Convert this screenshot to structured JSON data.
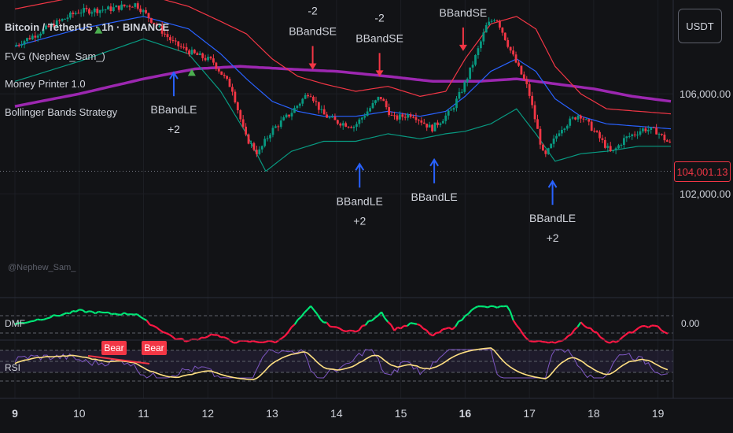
{
  "legend": {
    "symbol": "Bitcoin / TetherUS · 1h · BINANCE",
    "indicators": [
      "FVG (Nephew_Sam_)",
      "Money Printer 1.0",
      "Bollinger Bands Strategy"
    ]
  },
  "watermark": "@Nephew_Sam_",
  "currency_button": "USDT",
  "last_price": "104,001.13",
  "sub_panes": {
    "dmf_label": "DMF",
    "dmf_value": "0.00",
    "rsi_label": "RSI"
  },
  "colors": {
    "background": "#121316",
    "candle_up": "#089981",
    "candle_down": "#f23645",
    "bb_upper": "#f23645",
    "bb_basis": "#2962ff",
    "bb_lower": "#089981",
    "ma_long": "#9c27b0",
    "signal_long": "#2962ff",
    "signal_short": "#f23645",
    "rsi_signal": "#ffe082",
    "rsi_line": "#7e57c2",
    "dmf_up": "#00e676",
    "dmf_down": "#ff1744"
  },
  "chart_data": {
    "type": "candlestick",
    "x_ticks": [
      "9",
      "10",
      "11",
      "12",
      "13",
      "14",
      "15",
      "16",
      "17",
      "18",
      "19"
    ],
    "y_ticks": [
      "106,000.00",
      "102,000.00"
    ],
    "y_tick_values": [
      106000,
      102000
    ],
    "ylim": [
      100300,
      109600
    ],
    "last_price": 104001.13,
    "reference_line": 102900,
    "close_path": [
      {
        "x": 9.0,
        "y": 107900
      },
      {
        "x": 9.5,
        "y": 108600
      },
      {
        "x": 10.0,
        "y": 109300
      },
      {
        "x": 10.5,
        "y": 109400
      },
      {
        "x": 10.9,
        "y": 109600
      },
      {
        "x": 11.2,
        "y": 108800
      },
      {
        "x": 11.5,
        "y": 108000
      },
      {
        "x": 11.8,
        "y": 107600
      },
      {
        "x": 12.1,
        "y": 107300
      },
      {
        "x": 12.4,
        "y": 106200
      },
      {
        "x": 12.6,
        "y": 104300
      },
      {
        "x": 12.8,
        "y": 103600
      },
      {
        "x": 13.0,
        "y": 104500
      },
      {
        "x": 13.3,
        "y": 105200
      },
      {
        "x": 13.6,
        "y": 106100
      },
      {
        "x": 13.8,
        "y": 105200
      },
      {
        "x": 14.0,
        "y": 104900
      },
      {
        "x": 14.3,
        "y": 104700
      },
      {
        "x": 14.5,
        "y": 105300
      },
      {
        "x": 14.7,
        "y": 105900
      },
      {
        "x": 14.9,
        "y": 105000
      },
      {
        "x": 15.2,
        "y": 105200
      },
      {
        "x": 15.5,
        "y": 104600
      },
      {
        "x": 15.8,
        "y": 105300
      },
      {
        "x": 16.0,
        "y": 106300
      },
      {
        "x": 16.2,
        "y": 107600
      },
      {
        "x": 16.35,
        "y": 108700
      },
      {
        "x": 16.5,
        "y": 109100
      },
      {
        "x": 16.75,
        "y": 107600
      },
      {
        "x": 17.0,
        "y": 106200
      },
      {
        "x": 17.25,
        "y": 103400
      },
      {
        "x": 17.5,
        "y": 104600
      },
      {
        "x": 17.8,
        "y": 105200
      },
      {
        "x": 18.0,
        "y": 104600
      },
      {
        "x": 18.3,
        "y": 103600
      },
      {
        "x": 18.5,
        "y": 104200
      },
      {
        "x": 18.8,
        "y": 104600
      },
      {
        "x": 19.0,
        "y": 104500
      },
      {
        "x": 19.2,
        "y": 104000
      }
    ],
    "series": [
      {
        "name": "BB upper",
        "points": [
          {
            "x": 9.0,
            "y": 109400
          },
          {
            "x": 10.0,
            "y": 109900
          },
          {
            "x": 11.0,
            "y": 110000
          },
          {
            "x": 11.7,
            "y": 109500
          },
          {
            "x": 12.2,
            "y": 108900
          },
          {
            "x": 12.6,
            "y": 108400
          },
          {
            "x": 13.0,
            "y": 107400
          },
          {
            "x": 13.4,
            "y": 106700
          },
          {
            "x": 13.8,
            "y": 106400
          },
          {
            "x": 14.3,
            "y": 106100
          },
          {
            "x": 14.8,
            "y": 106300
          },
          {
            "x": 15.3,
            "y": 105900
          },
          {
            "x": 15.7,
            "y": 106100
          },
          {
            "x": 16.0,
            "y": 107400
          },
          {
            "x": 16.4,
            "y": 108800
          },
          {
            "x": 16.8,
            "y": 109100
          },
          {
            "x": 17.1,
            "y": 108600
          },
          {
            "x": 17.4,
            "y": 107100
          },
          {
            "x": 17.8,
            "y": 106000
          },
          {
            "x": 18.2,
            "y": 105400
          },
          {
            "x": 18.7,
            "y": 105300
          },
          {
            "x": 19.2,
            "y": 105200
          }
        ]
      },
      {
        "name": "BB basis",
        "points": [
          {
            "x": 9.0,
            "y": 107900
          },
          {
            "x": 10.0,
            "y": 108600
          },
          {
            "x": 11.0,
            "y": 109100
          },
          {
            "x": 11.7,
            "y": 108600
          },
          {
            "x": 12.2,
            "y": 107600
          },
          {
            "x": 12.6,
            "y": 106600
          },
          {
            "x": 13.0,
            "y": 105700
          },
          {
            "x": 13.4,
            "y": 105300
          },
          {
            "x": 13.8,
            "y": 105100
          },
          {
            "x": 14.3,
            "y": 105100
          },
          {
            "x": 14.8,
            "y": 105300
          },
          {
            "x": 15.3,
            "y": 105100
          },
          {
            "x": 15.7,
            "y": 105300
          },
          {
            "x": 16.0,
            "y": 105900
          },
          {
            "x": 16.4,
            "y": 106900
          },
          {
            "x": 16.8,
            "y": 107400
          },
          {
            "x": 17.1,
            "y": 106900
          },
          {
            "x": 17.4,
            "y": 105800
          },
          {
            "x": 17.8,
            "y": 105100
          },
          {
            "x": 18.2,
            "y": 104800
          },
          {
            "x": 18.7,
            "y": 104700
          },
          {
            "x": 19.2,
            "y": 104600
          }
        ]
      },
      {
        "name": "BB lower",
        "points": [
          {
            "x": 9.0,
            "y": 106500
          },
          {
            "x": 10.0,
            "y": 107300
          },
          {
            "x": 11.0,
            "y": 108200
          },
          {
            "x": 11.7,
            "y": 107600
          },
          {
            "x": 12.2,
            "y": 106100
          },
          {
            "x": 12.6,
            "y": 104400
          },
          {
            "x": 12.9,
            "y": 102900
          },
          {
            "x": 13.3,
            "y": 103700
          },
          {
            "x": 13.8,
            "y": 104100
          },
          {
            "x": 14.3,
            "y": 104100
          },
          {
            "x": 14.8,
            "y": 104400
          },
          {
            "x": 15.3,
            "y": 104200
          },
          {
            "x": 15.7,
            "y": 104400
          },
          {
            "x": 16.0,
            "y": 104500
          },
          {
            "x": 16.4,
            "y": 104800
          },
          {
            "x": 16.8,
            "y": 105400
          },
          {
            "x": 17.1,
            "y": 104400
          },
          {
            "x": 17.4,
            "y": 103300
          },
          {
            "x": 17.8,
            "y": 103600
          },
          {
            "x": 18.2,
            "y": 103700
          },
          {
            "x": 18.7,
            "y": 103900
          },
          {
            "x": 19.2,
            "y": 103900
          }
        ]
      },
      {
        "name": "MA long",
        "points": [
          {
            "x": 9.0,
            "y": 105500
          },
          {
            "x": 10.0,
            "y": 106000
          },
          {
            "x": 11.0,
            "y": 106600
          },
          {
            "x": 11.8,
            "y": 107000
          },
          {
            "x": 12.5,
            "y": 107100
          },
          {
            "x": 13.2,
            "y": 107000
          },
          {
            "x": 14.0,
            "y": 106900
          },
          {
            "x": 14.8,
            "y": 106700
          },
          {
            "x": 15.5,
            "y": 106500
          },
          {
            "x": 16.2,
            "y": 106500
          },
          {
            "x": 16.8,
            "y": 106600
          },
          {
            "x": 17.4,
            "y": 106400
          },
          {
            "x": 18.0,
            "y": 106200
          },
          {
            "x": 18.6,
            "y": 105900
          },
          {
            "x": 19.2,
            "y": 105700
          }
        ]
      }
    ],
    "signals": [
      {
        "side": "long",
        "x": 11.47,
        "label": "BBandLE",
        "qty": "+2"
      },
      {
        "side": "short",
        "x": 13.63,
        "label": "BBandSE",
        "qty": "-2"
      },
      {
        "side": "long",
        "x": 14.36,
        "label": "BBandLE",
        "qty": "+2"
      },
      {
        "side": "short",
        "x": 14.67,
        "label": "BBandSE",
        "qty": "-2"
      },
      {
        "side": "long",
        "x": 15.52,
        "label": "BBandLE",
        "qty": ""
      },
      {
        "side": "short",
        "x": 15.97,
        "label": "BBandSE",
        "qty": ""
      },
      {
        "side": "long",
        "x": 17.36,
        "label": "BBandLE",
        "qty": "+2"
      }
    ],
    "rsi_labels": [
      "Bear",
      "Bear"
    ]
  }
}
